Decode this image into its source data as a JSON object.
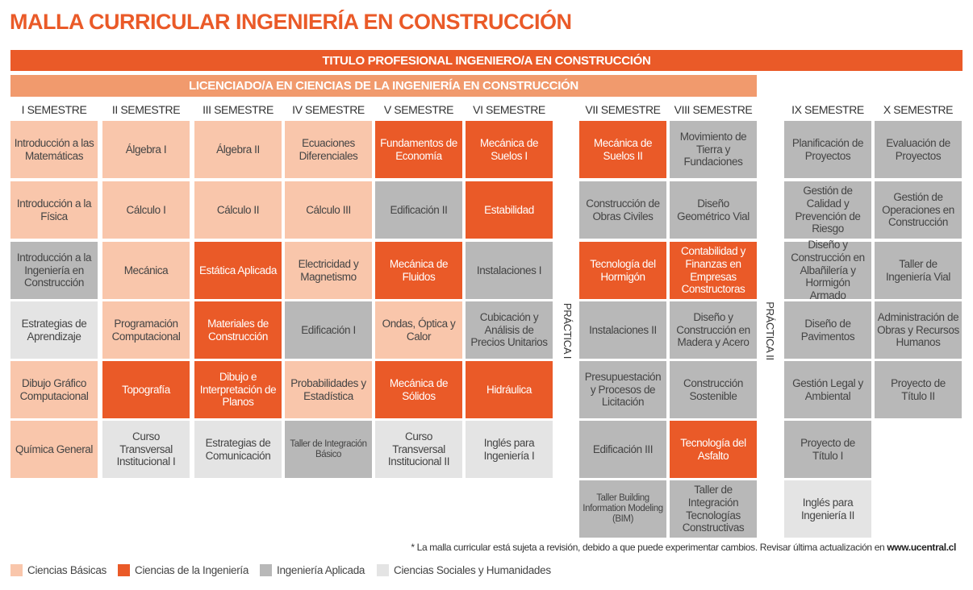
{
  "title": "MALLA CURRICULAR INGENIERÍA EN CONSTRUCCIÓN",
  "banner_titulo": "TITULO PROFESIONAL INGENIERO/A EN CONSTRUCCIÓN",
  "banner_licenciado": "LICENCIADO/A EN CIENCIAS DE LA INGENIERÍA EN CONSTRUCCIÓN",
  "practica1": "PRÁCTICA I",
  "practica2": "PRÁCTICA II",
  "semesters": [
    {
      "name": "I SEMESTRE",
      "courses": [
        {
          "text": "Introducción a las Matemáticas",
          "cat": "basic"
        },
        {
          "text": "Introducción a la Física",
          "cat": "basic"
        },
        {
          "text": "Introducción a la Ingeniería en Construcción",
          "cat": "apl"
        },
        {
          "text": "Estrategias de Aprendizaje",
          "cat": "soc"
        },
        {
          "text": "Dibujo Gráfico Computacional",
          "cat": "basic"
        },
        {
          "text": "Química General",
          "cat": "basic"
        }
      ]
    },
    {
      "name": "II SEMESTRE",
      "courses": [
        {
          "text": "Álgebra I",
          "cat": "basic"
        },
        {
          "text": "Cálculo I",
          "cat": "basic"
        },
        {
          "text": "Mecánica",
          "cat": "basic"
        },
        {
          "text": "Programación Computacional",
          "cat": "basic"
        },
        {
          "text": "Topografía",
          "cat": "ing"
        },
        {
          "text": "Curso Transversal Institucional I",
          "cat": "soc"
        }
      ]
    },
    {
      "name": "III SEMESTRE",
      "courses": [
        {
          "text": "Álgebra II",
          "cat": "basic"
        },
        {
          "text": "Cálculo II",
          "cat": "basic"
        },
        {
          "text": "Estática Aplicada",
          "cat": "ing"
        },
        {
          "text": "Materiales de Construcción",
          "cat": "ing"
        },
        {
          "text": "Dibujo e Interpretación de Planos",
          "cat": "ing"
        },
        {
          "text": "Estrategias de Comunicación",
          "cat": "soc"
        }
      ]
    },
    {
      "name": "IV SEMESTRE",
      "courses": [
        {
          "text": "Ecuaciones Diferenciales",
          "cat": "basic"
        },
        {
          "text": "Cálculo III",
          "cat": "basic"
        },
        {
          "text": "Electricidad y Magnetismo",
          "cat": "basic"
        },
        {
          "text": "Edificación I",
          "cat": "apl"
        },
        {
          "text": "Probabilidades y Estadística",
          "cat": "basic"
        },
        {
          "text": "Taller de Integración Básico",
          "cat": "apl",
          "small": true
        }
      ]
    },
    {
      "name": "V SEMESTRE",
      "courses": [
        {
          "text": "Fundamentos de Economía",
          "cat": "ing"
        },
        {
          "text": "Edificación II",
          "cat": "apl"
        },
        {
          "text": "Mecánica de Fluidos",
          "cat": "ing"
        },
        {
          "text": "Ondas, Óptica y Calor",
          "cat": "basic"
        },
        {
          "text": "Mecánica de Sólidos",
          "cat": "ing"
        },
        {
          "text": "Curso Transversal Institucional II",
          "cat": "soc"
        }
      ]
    },
    {
      "name": "VI SEMESTRE",
      "courses": [
        {
          "text": "Mecánica de Suelos I",
          "cat": "ing"
        },
        {
          "text": "Estabilidad",
          "cat": "ing"
        },
        {
          "text": "Instalaciones I",
          "cat": "apl"
        },
        {
          "text": "Cubicación y Análisis de Precios Unitarios",
          "cat": "apl"
        },
        {
          "text": "Hidráulica",
          "cat": "ing"
        },
        {
          "text": "Inglés para Ingeniería I",
          "cat": "soc"
        }
      ]
    },
    {
      "name": "VII SEMESTRE",
      "courses": [
        {
          "text": "Mecánica de Suelos II",
          "cat": "ing"
        },
        {
          "text": "Construcción de Obras Civiles",
          "cat": "apl"
        },
        {
          "text": "Tecnología del Hormigón",
          "cat": "ing"
        },
        {
          "text": "Instalaciones II",
          "cat": "apl"
        },
        {
          "text": "Presupuestación y Procesos de Licitación",
          "cat": "apl"
        },
        {
          "text": "Edificación III",
          "cat": "apl"
        },
        {
          "text": "Taller Building Information Modeling (BIM)",
          "cat": "apl",
          "small": true
        }
      ]
    },
    {
      "name": "VIII SEMESTRE",
      "courses": [
        {
          "text": "Movimiento de Tierra y Fundaciones",
          "cat": "apl"
        },
        {
          "text": "Diseño Geométrico Vial",
          "cat": "apl"
        },
        {
          "text": "Contabilidad y Finanzas en Empresas Constructoras",
          "cat": "ing"
        },
        {
          "text": "Diseño y Construcción en Madera y Acero",
          "cat": "apl"
        },
        {
          "text": "Construcción Sostenible",
          "cat": "apl"
        },
        {
          "text": "Tecnología del Asfalto",
          "cat": "ing"
        },
        {
          "text": "Taller de Integración Tecnologías Constructivas",
          "cat": "apl"
        }
      ]
    },
    {
      "name": "IX SEMESTRE",
      "courses": [
        {
          "text": "Planificación de Proyectos",
          "cat": "apl"
        },
        {
          "text": "Gestión de Calidad y Prevención de Riesgo",
          "cat": "apl"
        },
        {
          "text": "Diseño y Construcción en Albañilería y Hormigón Armado",
          "cat": "apl"
        },
        {
          "text": "Diseño de Pavimentos",
          "cat": "apl"
        },
        {
          "text": "Gestión Legal y Ambiental",
          "cat": "apl"
        },
        {
          "text": "Proyecto de Título I",
          "cat": "apl"
        },
        {
          "text": "Inglés para Ingeniería II",
          "cat": "soc"
        }
      ]
    },
    {
      "name": "X SEMESTRE",
      "courses": [
        {
          "text": "Evaluación de Proyectos",
          "cat": "apl"
        },
        {
          "text": "Gestión de Operaciones en Construcción",
          "cat": "apl"
        },
        {
          "text": "Taller de Ingeniería Vial",
          "cat": "apl"
        },
        {
          "text": "Administración de Obras y Recursos Humanos",
          "cat": "apl"
        },
        {
          "text": "Proyecto de Título II",
          "cat": "apl"
        }
      ]
    }
  ],
  "note_text": "* La malla curricular está sujeta a revisión, debido a que puede experimentar cambios. Revisar última actualización en ",
  "note_url": "www.ucentral.cl",
  "legend": [
    {
      "label": "Ciencias Básicas",
      "color": "#f9c6ab"
    },
    {
      "label": "Ciencias de la Ingeniería",
      "color": "#ea5a28"
    },
    {
      "label": "Ingeniería Aplicada",
      "color": "#b8b8b8"
    },
    {
      "label": "Ciencias Sociales y Humanidades",
      "color": "#e4e4e4"
    }
  ]
}
